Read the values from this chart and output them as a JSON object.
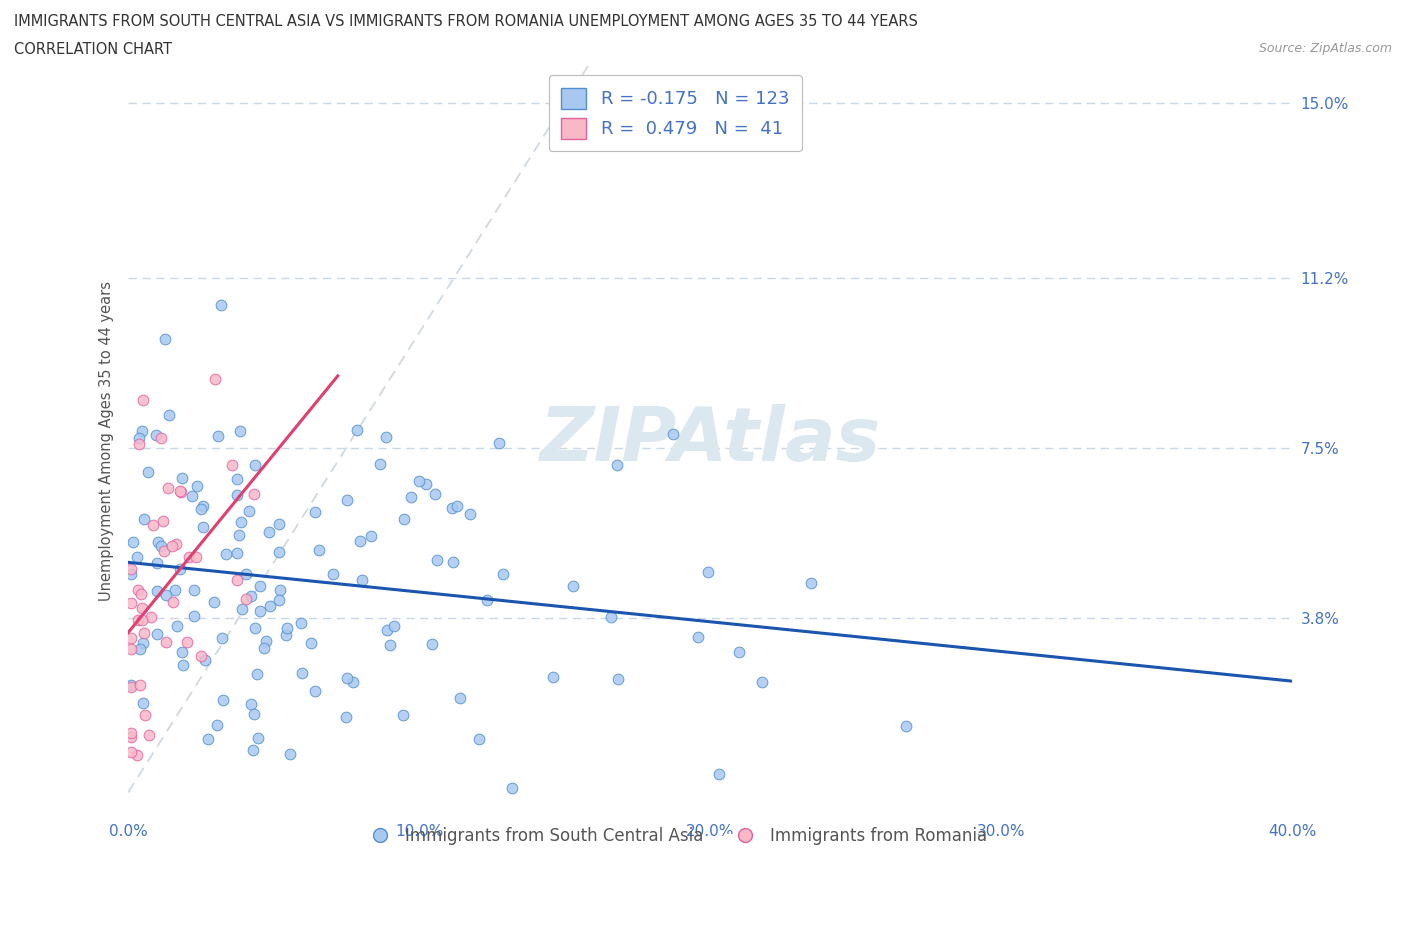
{
  "title_line1": "IMMIGRANTS FROM SOUTH CENTRAL ASIA VS IMMIGRANTS FROM ROMANIA UNEMPLOYMENT AMONG AGES 35 TO 44 YEARS",
  "title_line2": "CORRELATION CHART",
  "source_text": "Source: ZipAtlas.com",
  "ylabel": "Unemployment Among Ages 35 to 44 years",
  "xmin": 0.0,
  "xmax": 0.4,
  "ymin": -0.005,
  "ymax": 0.158,
  "yticks": [
    0.038,
    0.075,
    0.112,
    0.15
  ],
  "ytick_labels": [
    "3.8%",
    "7.5%",
    "11.2%",
    "15.0%"
  ],
  "xticks": [
    0.0,
    0.1,
    0.2,
    0.3,
    0.4
  ],
  "xtick_labels": [
    "0.0%",
    "10.0%",
    "20.0%",
    "30.0%",
    "40.0%"
  ],
  "grid_color": "#c8d8e8",
  "background_color": "#ffffff",
  "watermark_color": "#dce8f0",
  "series1_color": "#a8c8f0",
  "series1_edge": "#5090d0",
  "series2_color": "#f8b8c8",
  "series2_edge": "#e060a0",
  "trendline1_color": "#1a55b0",
  "trendline2_color": "#e04070",
  "diagonal_color": "#d0d8e0",
  "legend_label1": "Immigrants from South Central Asia",
  "legend_label2": "Immigrants from Romania",
  "R1": -0.175,
  "N1": 123,
  "R2": 0.479,
  "N2": 41
}
